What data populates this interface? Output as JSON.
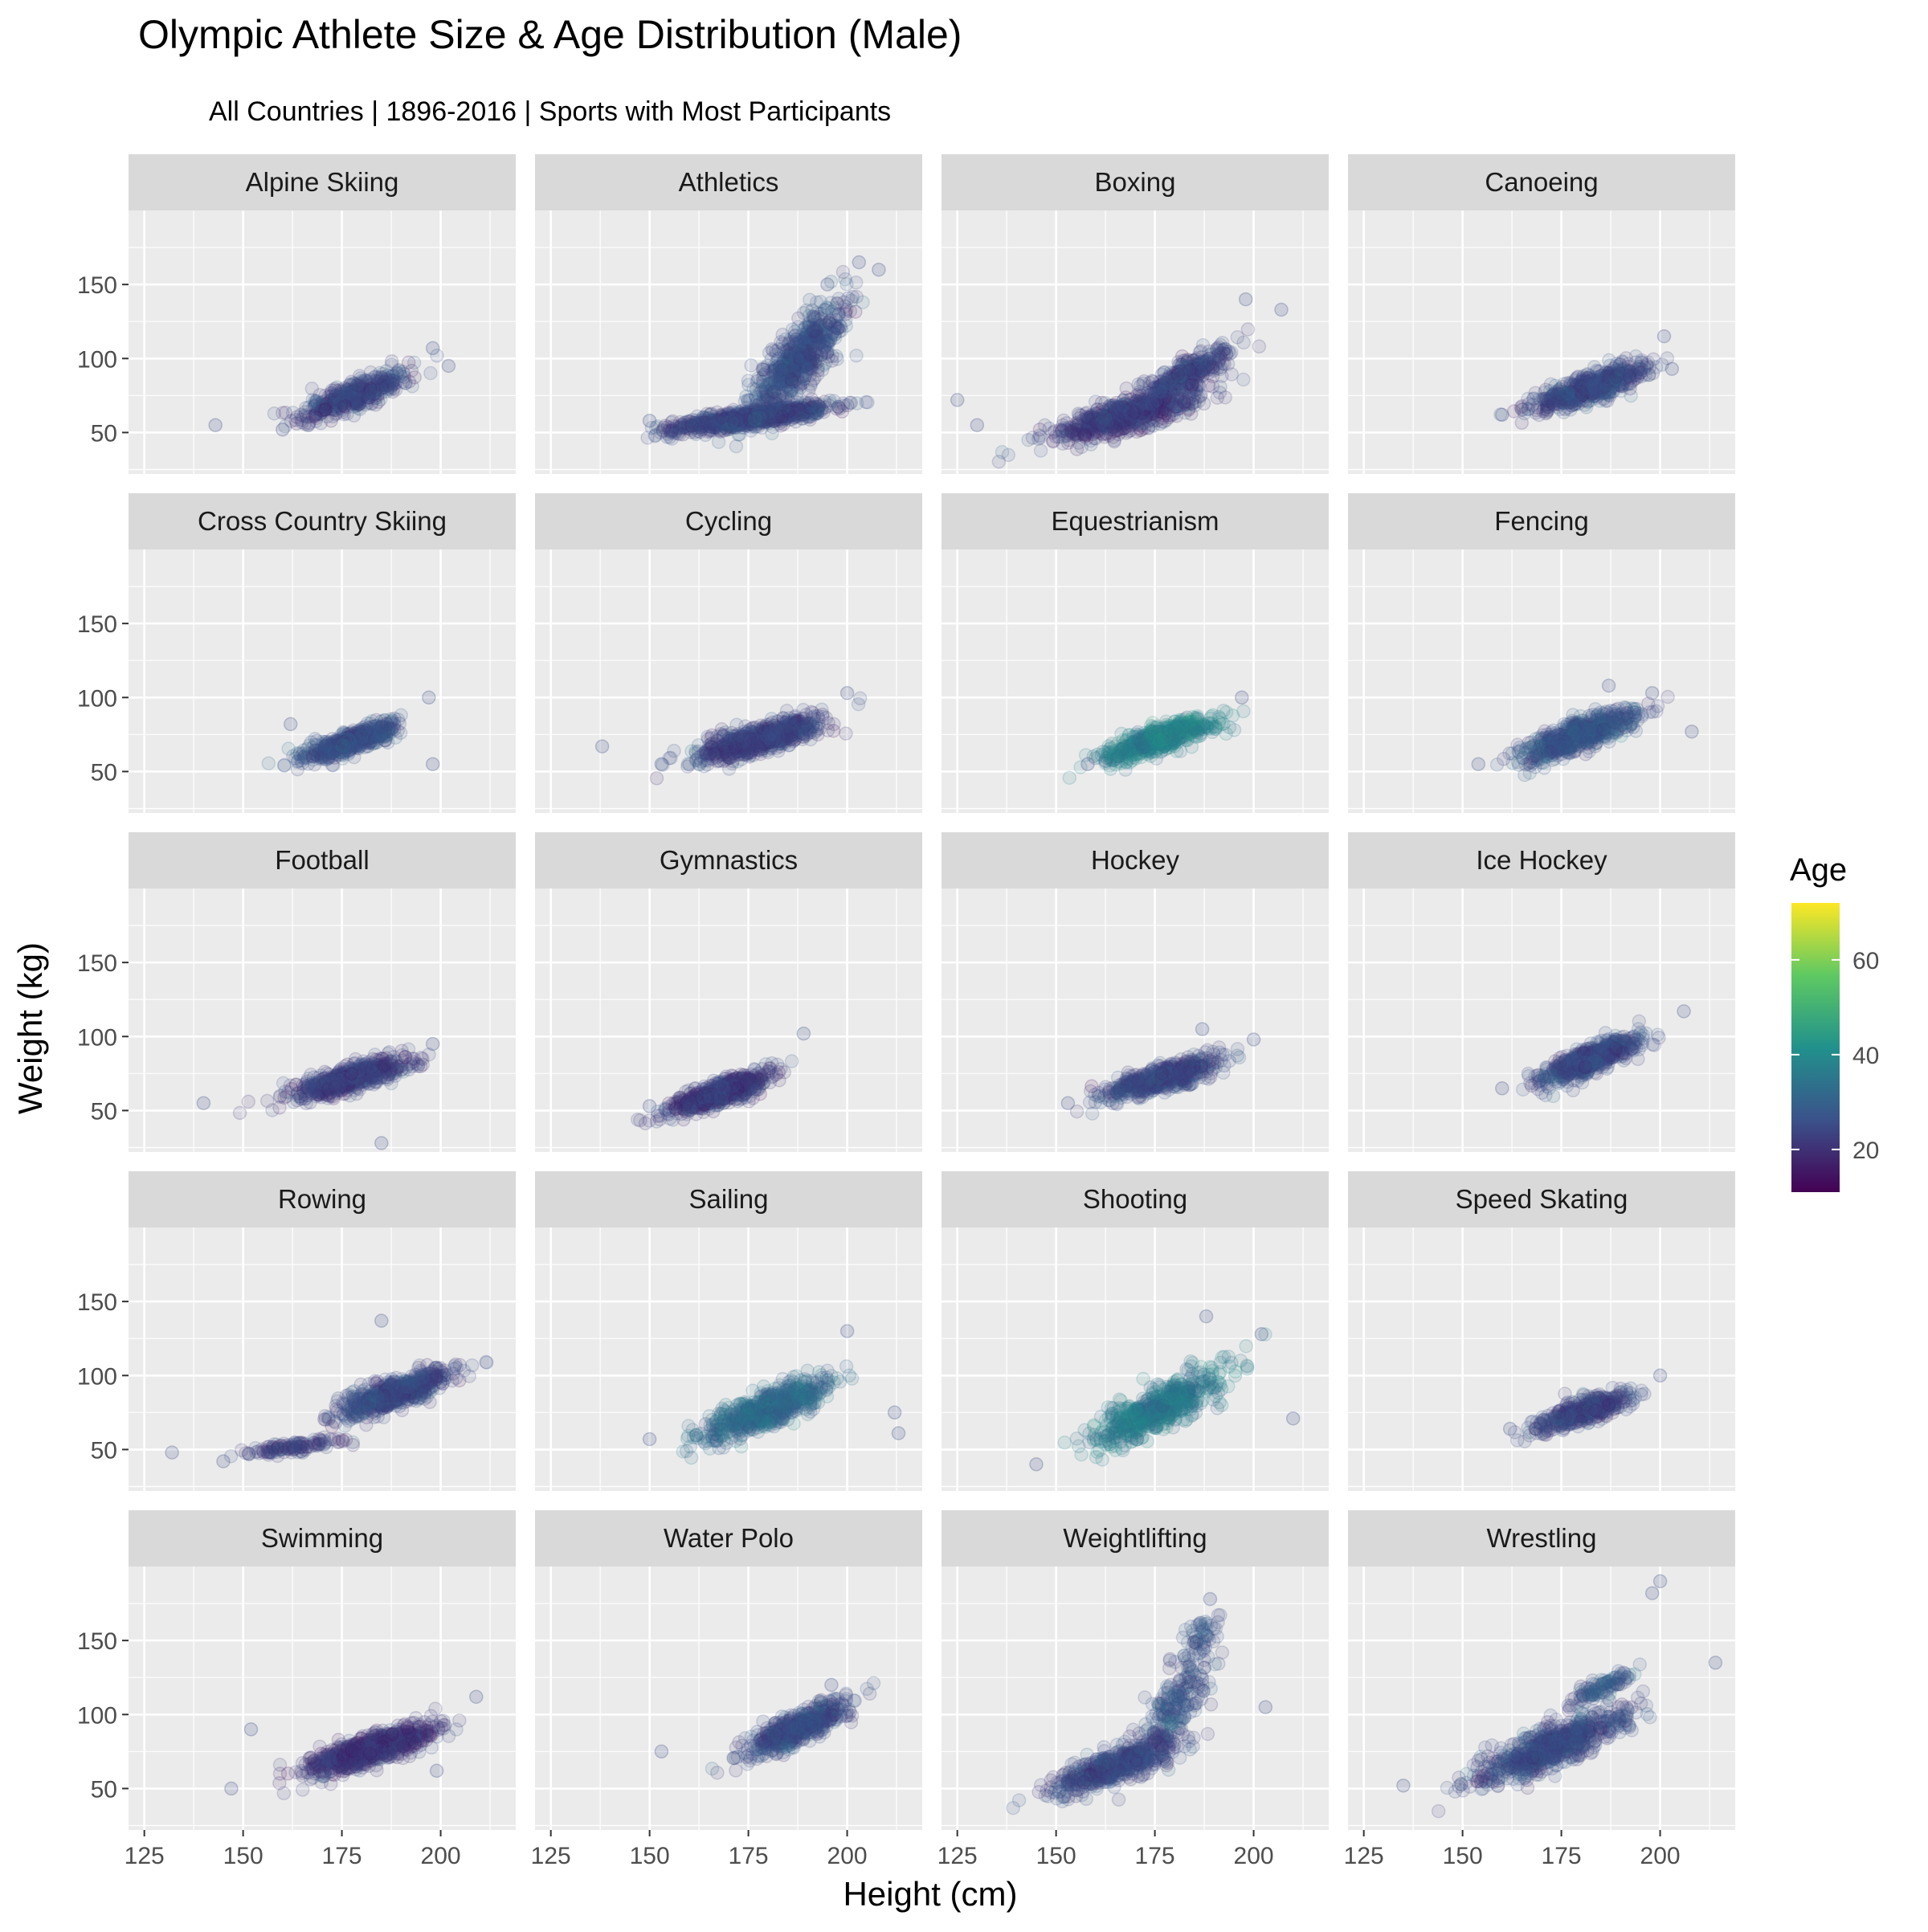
{
  "chart_data": {
    "type": "scatter",
    "title": "Olympic Athlete Size & Age Distribution (Male)",
    "subtitle": "All Countries | 1896-2016 | Sports with Most Participants",
    "xlabel": "Height (cm)",
    "ylabel": "Weight (kg)",
    "xlim": [
      121,
      219
    ],
    "ylim": [
      22,
      200
    ],
    "x_ticks": [
      125,
      150,
      175,
      200
    ],
    "y_ticks": [
      50,
      100,
      150
    ],
    "grid": true,
    "facets": "4 columns x 5 rows",
    "color_scale": {
      "name": "Age",
      "palette": "viridis",
      "range": [
        11,
        72
      ],
      "ticks": [
        20,
        40,
        60
      ],
      "colors": [
        "#440154",
        "#3b528b",
        "#21918c",
        "#5ec962",
        "#fde725"
      ],
      "legend_position": "right"
    },
    "panels": [
      {
        "name": "Alpine Skiing",
        "clusters": [
          {
            "cx": 178,
            "cy": 75,
            "n": 420,
            "sdx": 7,
            "sdy": 9,
            "age": 24
          }
        ],
        "outliers": [
          [
            143,
            55
          ],
          [
            198,
            107
          ],
          [
            202,
            95
          ],
          [
            160,
            52
          ]
        ]
      },
      {
        "name": "Athletics",
        "clusters": [
          {
            "cx": 176,
            "cy": 60,
            "n": 900,
            "sdx": 10,
            "sdy": 5,
            "age": 24
          },
          {
            "cx": 188,
            "cy": 100,
            "n": 650,
            "sdx": 6,
            "sdy": 20,
            "age": 26
          }
        ],
        "outliers": [
          [
            203,
            165
          ],
          [
            208,
            160
          ],
          [
            150,
            58
          ],
          [
            195,
            150
          ]
        ]
      },
      {
        "name": "Boxing",
        "clusters": [
          {
            "cx": 168,
            "cy": 62,
            "n": 700,
            "sdx": 9,
            "sdy": 9,
            "age": 22
          },
          {
            "cx": 183,
            "cy": 90,
            "n": 300,
            "sdx": 6,
            "sdy": 10,
            "age": 24
          }
        ],
        "outliers": [
          [
            125,
            72
          ],
          [
            130,
            55
          ],
          [
            207,
            133
          ],
          [
            198,
            140
          ]
        ]
      },
      {
        "name": "Canoeing",
        "clusters": [
          {
            "cx": 182,
            "cy": 80,
            "n": 600,
            "sdx": 7,
            "sdy": 8,
            "age": 25
          }
        ],
        "outliers": [
          [
            201,
            115
          ],
          [
            203,
            93
          ],
          [
            160,
            62
          ]
        ]
      },
      {
        "name": "Cross Country Skiing",
        "clusters": [
          {
            "cx": 177,
            "cy": 70,
            "n": 500,
            "sdx": 6,
            "sdy": 7,
            "age": 26
          }
        ],
        "outliers": [
          [
            197,
            100
          ],
          [
            198,
            55
          ],
          [
            162,
            82
          ]
        ]
      },
      {
        "name": "Cycling",
        "clusters": [
          {
            "cx": 178,
            "cy": 72,
            "n": 700,
            "sdx": 8,
            "sdy": 8,
            "age": 24
          }
        ],
        "outliers": [
          [
            138,
            67
          ],
          [
            153,
            55
          ],
          [
            200,
            103
          ]
        ]
      },
      {
        "name": "Equestrianism",
        "clusters": [
          {
            "cx": 176,
            "cy": 72,
            "n": 600,
            "sdx": 7,
            "sdy": 8,
            "age": 38
          }
        ],
        "outliers": [
          [
            197,
            100
          ],
          [
            158,
            55
          ]
        ]
      },
      {
        "name": "Fencing",
        "clusters": [
          {
            "cx": 180,
            "cy": 75,
            "n": 650,
            "sdx": 7,
            "sdy": 9,
            "age": 27
          }
        ],
        "outliers": [
          [
            154,
            55
          ],
          [
            208,
            77
          ],
          [
            187,
            108
          ],
          [
            198,
            103
          ]
        ]
      },
      {
        "name": "Football",
        "clusters": [
          {
            "cx": 177,
            "cy": 72,
            "n": 650,
            "sdx": 7,
            "sdy": 7,
            "age": 23
          }
        ],
        "outliers": [
          [
            140,
            55
          ],
          [
            185,
            28
          ],
          [
            198,
            95
          ]
        ]
      },
      {
        "name": "Gymnastics",
        "clusters": [
          {
            "cx": 168,
            "cy": 62,
            "n": 650,
            "sdx": 6,
            "sdy": 7,
            "age": 22
          }
        ],
        "outliers": [
          [
            150,
            53
          ],
          [
            189,
            102
          ]
        ]
      },
      {
        "name": "Hockey",
        "clusters": [
          {
            "cx": 177,
            "cy": 72,
            "n": 600,
            "sdx": 7,
            "sdy": 7,
            "age": 25
          }
        ],
        "outliers": [
          [
            153,
            55
          ],
          [
            200,
            98
          ],
          [
            187,
            105
          ]
        ]
      },
      {
        "name": "Ice Hockey",
        "clusters": [
          {
            "cx": 182,
            "cy": 84,
            "n": 650,
            "sdx": 6,
            "sdy": 8,
            "age": 25
          }
        ],
        "outliers": [
          [
            206,
            117
          ],
          [
            160,
            65
          ]
        ]
      },
      {
        "name": "Rowing",
        "clusters": [
          {
            "cx": 188,
            "cy": 88,
            "n": 650,
            "sdx": 7,
            "sdy": 9,
            "age": 25
          },
          {
            "cx": 163,
            "cy": 52,
            "n": 120,
            "sdx": 6,
            "sdy": 3,
            "age": 22
          }
        ],
        "outliers": [
          [
            132,
            48
          ],
          [
            145,
            42
          ],
          [
            185,
            137
          ]
        ]
      },
      {
        "name": "Sailing",
        "clusters": [
          {
            "cx": 180,
            "cy": 77,
            "n": 650,
            "sdx": 8,
            "sdy": 11,
            "age": 32
          }
        ],
        "outliers": [
          [
            212,
            75
          ],
          [
            213,
            61
          ],
          [
            150,
            57
          ],
          [
            200,
            130
          ]
        ]
      },
      {
        "name": "Shooting",
        "clusters": [
          {
            "cx": 176,
            "cy": 78,
            "n": 650,
            "sdx": 8,
            "sdy": 13,
            "age": 36
          }
        ],
        "outliers": [
          [
            202,
            128
          ],
          [
            210,
            71
          ],
          [
            145,
            40
          ],
          [
            188,
            140
          ]
        ]
      },
      {
        "name": "Speed Skating",
        "clusters": [
          {
            "cx": 180,
            "cy": 75,
            "n": 450,
            "sdx": 6,
            "sdy": 7,
            "age": 24
          }
        ],
        "outliers": [
          [
            200,
            100
          ],
          [
            162,
            64
          ]
        ]
      },
      {
        "name": "Swimming",
        "clusters": [
          {
            "cx": 182,
            "cy": 76,
            "n": 800,
            "sdx": 8,
            "sdy": 9,
            "age": 21
          }
        ],
        "outliers": [
          [
            147,
            50
          ],
          [
            152,
            90
          ],
          [
            209,
            112
          ],
          [
            199,
            62
          ]
        ]
      },
      {
        "name": "Water Polo",
        "clusters": [
          {
            "cx": 187,
            "cy": 90,
            "n": 550,
            "sdx": 6,
            "sdy": 9,
            "age": 25
          }
        ],
        "outliers": [
          [
            153,
            75
          ],
          [
            196,
            120
          ]
        ]
      },
      {
        "name": "Weightlifting",
        "clusters": [
          {
            "cx": 165,
            "cy": 65,
            "n": 550,
            "sdx": 8,
            "sdy": 10,
            "age": 25
          },
          {
            "cx": 180,
            "cy": 105,
            "n": 200,
            "sdx": 5,
            "sdy": 18,
            "age": 26
          },
          {
            "cx": 186,
            "cy": 150,
            "n": 60,
            "sdx": 3,
            "sdy": 10,
            "age": 27
          }
        ],
        "outliers": [
          [
            203,
            105
          ],
          [
            189,
            178
          ]
        ]
      },
      {
        "name": "Wrestling",
        "clusters": [
          {
            "cx": 172,
            "cy": 78,
            "n": 750,
            "sdx": 9,
            "sdy": 13,
            "age": 25
          },
          {
            "cx": 186,
            "cy": 120,
            "n": 100,
            "sdx": 4,
            "sdy": 6,
            "age": 27
          }
        ],
        "outliers": [
          [
            135,
            52
          ],
          [
            214,
            135
          ],
          [
            200,
            190
          ],
          [
            198,
            182
          ]
        ]
      }
    ]
  }
}
